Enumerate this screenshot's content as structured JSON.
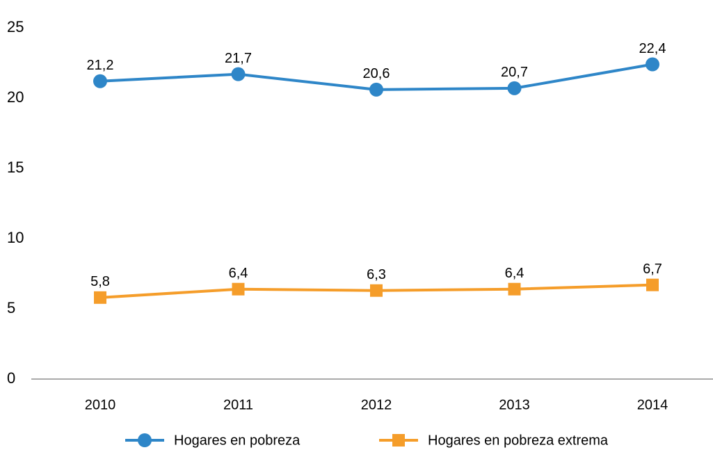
{
  "chart_data": {
    "type": "line",
    "categories": [
      "2010",
      "2011",
      "2012",
      "2013",
      "2014"
    ],
    "series": [
      {
        "name": "Hogares en pobreza",
        "color": "#2e86c8",
        "marker": "circle",
        "values": [
          21.2,
          21.7,
          20.6,
          20.7,
          22.4
        ],
        "value_labels": [
          "21,2",
          "21,7",
          "20,6",
          "20,7",
          "22,4"
        ]
      },
      {
        "name": "Hogares en pobreza extrema",
        "color": "#f59d2a",
        "marker": "square",
        "values": [
          5.8,
          6.4,
          6.3,
          6.4,
          6.7
        ],
        "value_labels": [
          "5,8",
          "6,4",
          "6,3",
          "6,4",
          "6,7"
        ]
      }
    ],
    "ylim": [
      0,
      25
    ],
    "yticks": [
      0,
      5,
      10,
      15,
      20,
      25
    ],
    "grid": false,
    "legend": "bottom"
  }
}
